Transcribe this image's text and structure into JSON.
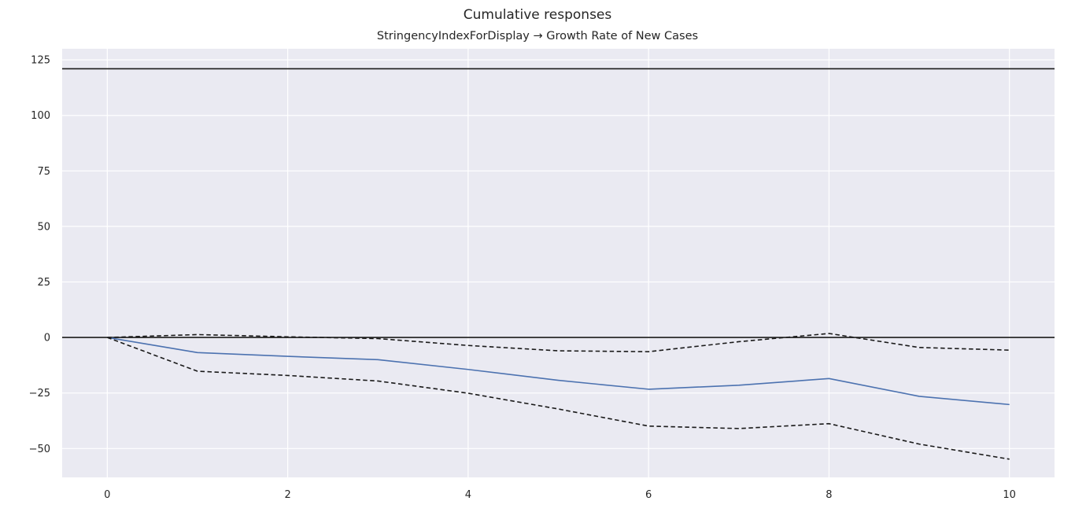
{
  "suptitle": "Cumulative responses",
  "chart_data": {
    "type": "line",
    "title": "StringencyIndexForDisplay → Growth Rate of New Cases",
    "xlabel": "",
    "ylabel": "",
    "xlim": [
      -0.5,
      10.5
    ],
    "ylim": [
      -63,
      130
    ],
    "xticks": [
      0,
      2,
      4,
      6,
      8,
      10
    ],
    "yticks": [
      125,
      100,
      75,
      50,
      25,
      0,
      -25,
      -50
    ],
    "ytick_labels": [
      "125",
      "100",
      "75",
      "50",
      "25",
      "0",
      "−25",
      "−50"
    ],
    "grid": true,
    "x": [
      0,
      1,
      2,
      3,
      4,
      5,
      6,
      7,
      8,
      9,
      10
    ],
    "series": [
      {
        "role": "response",
        "style": "solid",
        "color": "#4c72b0",
        "values": [
          0,
          -6.8,
          -8.5,
          -10.0,
          -14.4,
          -19.3,
          -23.3,
          -21.5,
          -18.5,
          -26.5,
          -30.2
        ]
      },
      {
        "role": "upper band",
        "style": "dashed",
        "color": "#1a1a1a",
        "values": [
          0,
          1.3,
          0.3,
          -0.5,
          -3.6,
          -6.0,
          -6.4,
          -1.9,
          1.8,
          -4.5,
          -5.7
        ]
      },
      {
        "role": "lower band",
        "style": "dashed",
        "color": "#1a1a1a",
        "values": [
          0,
          -15.2,
          -17.1,
          -19.6,
          -25.1,
          -32.2,
          -39.9,
          -41.0,
          -38.8,
          -48.0,
          -54.8
        ]
      }
    ],
    "hlines": [
      0,
      121
    ],
    "colors": {
      "background": "#eaeaf2",
      "grid": "#ffffff",
      "hline": "#1a1a1a"
    }
  }
}
